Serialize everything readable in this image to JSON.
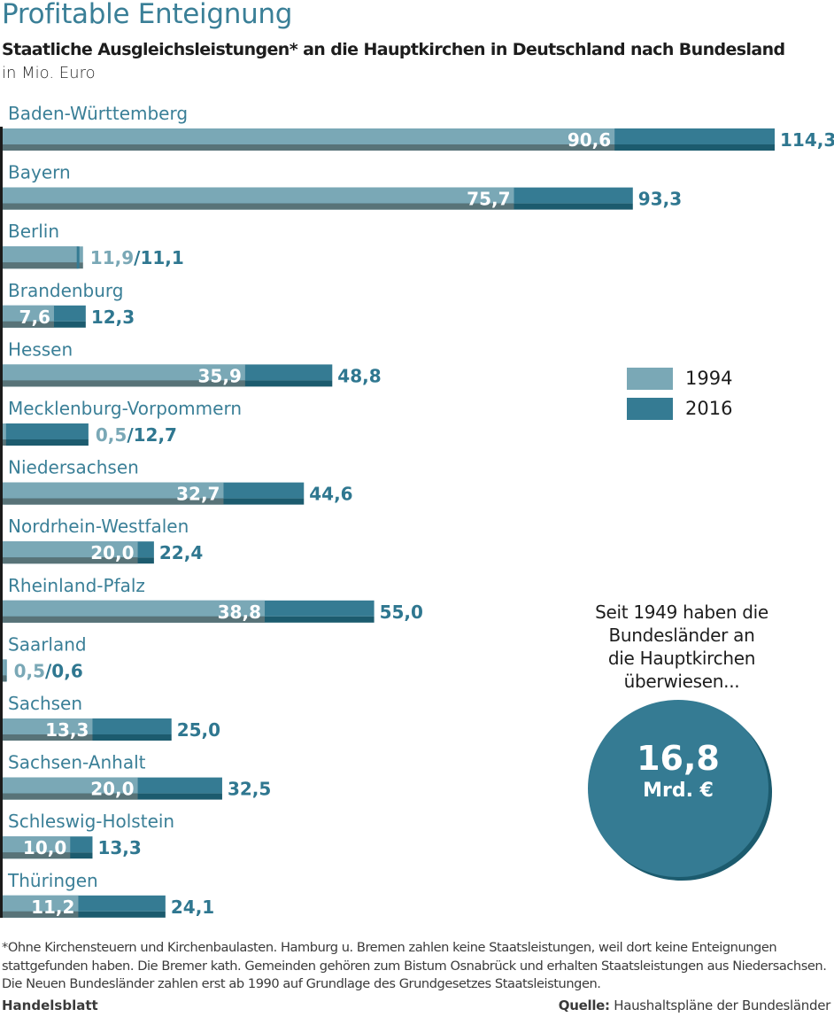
{
  "header": {
    "title": "Profitable Enteignung",
    "subtitle": "Staatliche Ausgleichsleistungen* an die Hauptkirchen in Deutschland nach Bundesland",
    "unit": "in Mio. Euro"
  },
  "colors": {
    "accent": "#3a7f97",
    "bar_1994": "#7aa8b6",
    "bar_1994_shadow": "#587378",
    "bar_2016": "#357b93",
    "bar_2016_shadow": "#1c5b6e",
    "label_1994": "#7aa8b6",
    "label_2016": "#2f7790"
  },
  "legend": {
    "items": [
      {
        "label": "1994",
        "color": "#7aa8b6"
      },
      {
        "label": "2016",
        "color": "#357b93"
      }
    ]
  },
  "callout": {
    "text_lines": [
      "Seit 1949 haben die",
      "Bundesländer an",
      "die Hauptkirchen",
      "überwiesen..."
    ],
    "value": "16,8",
    "unit": "Mrd. €"
  },
  "footer": {
    "footnote": "*Ohne Kirchensteuern und Kirchenbaulasten. Hamburg u. Bremen zahlen keine Staatsleistungen, weil dort keine Enteig­nungen stattgefunden haben. Die Bremer kath. Gemeinden gehören zum Bistum Osnabrück und erhalten Staatsleistun­gen aus Niedersachsen. Die Neuen Bundesländer zahlen erst ab 1990 auf Grundlage des Grundgesetzes Staatsleistungen.",
    "brand": "Handelsblatt",
    "source_label": "Quelle:",
    "source_text": " Haushaltspläne der Bundesländer"
  },
  "chart_data": {
    "type": "bar",
    "orientation": "horizontal",
    "title": "Profitable Enteignung",
    "subtitle": "Staatliche Ausgleichsleistungen* an die Hauptkirchen in Deutschland nach Bundesland",
    "xlabel": "in Mio. Euro",
    "ylabel": "",
    "xlim": [
      0,
      114.3
    ],
    "grid": false,
    "legend_position": "right",
    "categories": [
      "Baden-Württemberg",
      "Bayern",
      "Berlin",
      "Brandenburg",
      "Hessen",
      "Mecklenburg-Vorpommern",
      "Niedersachsen",
      "Nordrhein-Westfalen",
      "Rheinland-Pfalz",
      "Saarland",
      "Sachsen",
      "Sachsen-Anhalt",
      "Schleswig-Holstein",
      "Thüringen"
    ],
    "series": [
      {
        "name": "1994",
        "values": [
          90.6,
          75.7,
          11.9,
          7.6,
          35.9,
          0.5,
          32.7,
          20.0,
          38.8,
          0.5,
          13.3,
          20.0,
          10.0,
          11.2
        ]
      },
      {
        "name": "2016",
        "values": [
          114.3,
          93.3,
          11.1,
          12.3,
          48.8,
          12.7,
          44.6,
          22.4,
          55.0,
          0.6,
          25.0,
          32.5,
          13.3,
          24.1
        ]
      }
    ],
    "labels_1994": [
      "90,6",
      "75,7",
      "11,9",
      "7,6",
      "35,9",
      "0,5",
      "32,7",
      "20,0",
      "38,8",
      "0,5",
      "13,3",
      "20,0",
      "10,0",
      "11,2"
    ],
    "labels_2016": [
      "114,3",
      "93,3",
      "11,1",
      "12,3",
      "48,8",
      "12,7",
      "44,6",
      "22,4",
      "55,0",
      "0,6",
      "25,0",
      "32,5",
      "13,3",
      "24,1"
    ]
  }
}
